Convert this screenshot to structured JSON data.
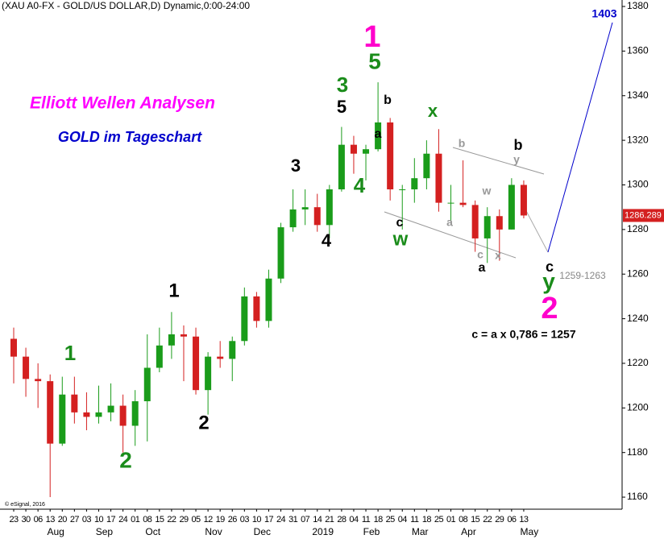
{
  "chart_data": {
    "type": "candlestick",
    "title": "(XAU A0-FX - GOLD/US DOLLAR,D) Dynamic,0:00-24:00",
    "headline": "Elliott Wellen Analysen",
    "subtitle": "GOLD im Tageschart",
    "copyright": "© eSignal, 2016",
    "categories": [
      "23",
      "30",
      "06",
      "13",
      "20",
      "27",
      "03",
      "10",
      "17",
      "24",
      "01",
      "08",
      "15",
      "22",
      "29",
      "05",
      "12",
      "19",
      "26",
      "03",
      "10",
      "17",
      "24",
      "31",
      "07",
      "14",
      "21",
      "28",
      "04",
      "11",
      "18",
      "25",
      "04",
      "11",
      "18",
      "25",
      "01",
      "08",
      "15",
      "22",
      "29",
      "06",
      "13"
    ],
    "months": [
      "Aug",
      "Sep",
      "Oct",
      "Nov",
      "Dec",
      "2019",
      "Feb",
      "Mar",
      "Apr",
      "May"
    ],
    "open": [
      1231,
      1223,
      1213,
      1212,
      1184,
      1206,
      1198,
      1196,
      1198,
      1201,
      1192,
      1203,
      1218,
      1228,
      1233,
      1232,
      1208,
      1223,
      1222,
      1230,
      1250,
      1239,
      1258,
      1281,
      1289,
      1290,
      1282,
      1298,
      1318,
      1314,
      1316,
      1328,
      1298,
      1298,
      1303,
      1314,
      1292,
      1292,
      1291,
      1276,
      1286,
      1280,
      1300
    ],
    "high": [
      1236,
      1227,
      1220,
      1215,
      1214,
      1214,
      1207,
      1210,
      1211,
      1206,
      1208,
      1233,
      1236,
      1243,
      1237,
      1236,
      1225,
      1230,
      1232,
      1254,
      1252,
      1262,
      1283,
      1298,
      1298,
      1296,
      1300,
      1326,
      1322,
      1318,
      1346,
      1330,
      1300,
      1312,
      1320,
      1325,
      1300,
      1311,
      1293,
      1290,
      1289,
      1303,
      1302
    ],
    "low": [
      1211,
      1205,
      1200,
      1160,
      1183,
      1193,
      1190,
      1193,
      1194,
      1180,
      1183,
      1185,
      1216,
      1222,
      1212,
      1206,
      1197,
      1218,
      1212,
      1228,
      1236,
      1236,
      1256,
      1279,
      1282,
      1279,
      1276,
      1297,
      1305,
      1302,
      1315,
      1293,
      1280,
      1292,
      1298,
      1288,
      1283,
      1290,
      1270,
      1265,
      1266,
      1280,
      1285
    ],
    "close": [
      1223,
      1213,
      1212,
      1184,
      1206,
      1198,
      1196,
      1198,
      1201,
      1192,
      1203,
      1218,
      1228,
      1233,
      1232,
      1208,
      1223,
      1222,
      1230,
      1250,
      1239,
      1258,
      1281,
      1289,
      1290,
      1282,
      1298,
      1318,
      1314,
      1316,
      1328,
      1298,
      1298,
      1303,
      1314,
      1292,
      1292,
      1291,
      1276,
      1286,
      1280,
      1300,
      1286.289
    ],
    "up_color": "#1a9c1a",
    "down_color": "#d42020",
    "ylim": [
      1154.6,
      1382.9
    ],
    "yticks": [
      1160,
      1180,
      1200,
      1220,
      1240,
      1260,
      1280,
      1300,
      1320,
      1340,
      1360,
      1380
    ],
    "annotations": [
      {
        "text": "1",
        "color": "#ff00cc"
      },
      {
        "text": "5",
        "color": "#1a8c1a"
      },
      {
        "text": "3",
        "color": "#1a8c1a"
      },
      {
        "text": "5",
        "color": "#000000"
      },
      {
        "text": "b",
        "color": "#000000"
      },
      {
        "text": "a",
        "color": "#000000"
      },
      {
        "text": "x",
        "color": "#1a8c1a"
      },
      {
        "text": "b",
        "color": "#999999"
      },
      {
        "text": "b",
        "color": "#000000"
      },
      {
        "text": "y",
        "color": "#999999"
      },
      {
        "text": "3",
        "color": "#000000"
      },
      {
        "text": "4",
        "color": "#1a8c1a"
      },
      {
        "text": "w",
        "color": "#999999"
      },
      {
        "text": "c",
        "color": "#000000"
      },
      {
        "text": "a",
        "color": "#999999"
      },
      {
        "text": "w",
        "color": "#1a8c1a"
      },
      {
        "text": "4",
        "color": "#000000"
      },
      {
        "text": "c",
        "color": "#999999"
      },
      {
        "text": "x",
        "color": "#999999"
      },
      {
        "text": "a",
        "color": "#000000"
      },
      {
        "text": "c",
        "color": "#000000"
      },
      {
        "text": "y",
        "color": "#1a8c1a"
      },
      {
        "text": "2",
        "color": "#ff00cc"
      },
      {
        "text": "1259-1263",
        "color": "#888888"
      },
      {
        "text": "1",
        "color": "#000000"
      },
      {
        "text": "1",
        "color": "#1a8c1a"
      },
      {
        "text": "2",
        "color": "#000000"
      },
      {
        "text": "2",
        "color": "#1a8c1a"
      },
      {
        "text": "1403",
        "color": "#0000cc"
      },
      {
        "text": "c = a x 0,786 = 1257",
        "color": "#000000"
      }
    ]
  }
}
